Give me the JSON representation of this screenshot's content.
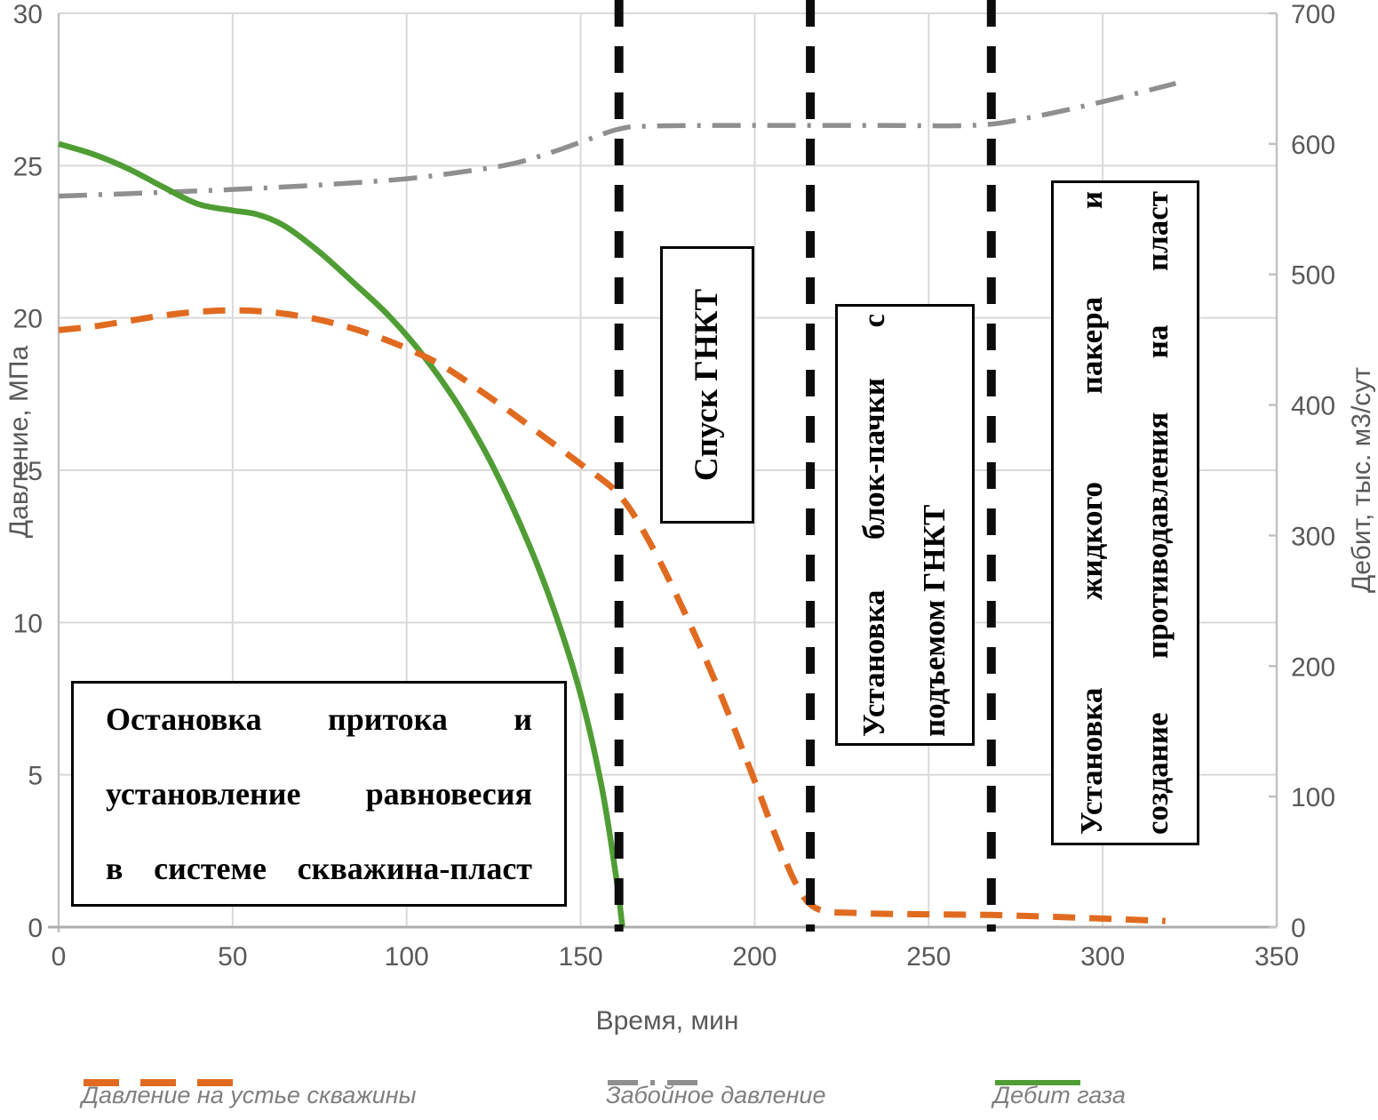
{
  "colors": {
    "grid": "#D9D9D9",
    "axis": "#C2C2C2",
    "bottom_axis": "#ADADAD",
    "event_line": "#0C0C0C",
    "tick_text": "#595959",
    "legend_text": "#7F7F7F"
  },
  "chart_data": {
    "type": "line",
    "title": "",
    "grid": "on",
    "legend_position": "bottom",
    "x_axis": {
      "title": "Время, мин",
      "range": [
        0,
        350
      ],
      "tick_labels": [
        "0",
        "50",
        "100",
        "150",
        "200",
        "250",
        "300",
        "350"
      ]
    },
    "y_left": {
      "title": "Давление, МПа",
      "range": [
        0,
        30
      ],
      "tick_labels": [
        "0",
        "5",
        "10",
        "15",
        "20",
        "25",
        "30"
      ]
    },
    "y_right": {
      "title": "Дебит, тыс. м3/сут",
      "range": [
        0,
        700
      ],
      "tick_labels": [
        "0",
        "100",
        "200",
        "300",
        "400",
        "500",
        "600",
        "700"
      ]
    },
    "event_lines": [
      161,
      216,
      268
    ],
    "series": [
      {
        "name": "Давление на устье скважины",
        "axis": "left",
        "style": "dashed",
        "color": "#E06B20",
        "points": [
          [
            0,
            19.6
          ],
          [
            10,
            19.72
          ],
          [
            20,
            19.9
          ],
          [
            30,
            20.08
          ],
          [
            40,
            20.2
          ],
          [
            50,
            20.25
          ],
          [
            60,
            20.2
          ],
          [
            70,
            20.05
          ],
          [
            80,
            19.8
          ],
          [
            90,
            19.45
          ],
          [
            100,
            19.0
          ],
          [
            110,
            18.45
          ],
          [
            120,
            17.7
          ],
          [
            130,
            16.9
          ],
          [
            140,
            16.05
          ],
          [
            150,
            15.2
          ],
          [
            161,
            14.2
          ],
          [
            170,
            12.6
          ],
          [
            180,
            10.3
          ],
          [
            190,
            7.7
          ],
          [
            200,
            4.8
          ],
          [
            206,
            3.0
          ],
          [
            212,
            1.4
          ],
          [
            218,
            0.6
          ],
          [
            230,
            0.46
          ],
          [
            250,
            0.42
          ],
          [
            268,
            0.4
          ],
          [
            285,
            0.34
          ],
          [
            300,
            0.28
          ],
          [
            318,
            0.2
          ]
        ]
      },
      {
        "name": "Забойное давление",
        "axis": "left",
        "style": "dashdot",
        "color": "#8F8F8F",
        "points": [
          [
            0,
            24.0
          ],
          [
            20,
            24.08
          ],
          [
            40,
            24.17
          ],
          [
            60,
            24.27
          ],
          [
            80,
            24.4
          ],
          [
            100,
            24.57
          ],
          [
            115,
            24.78
          ],
          [
            130,
            25.05
          ],
          [
            142,
            25.45
          ],
          [
            152,
            25.85
          ],
          [
            161,
            26.2
          ],
          [
            170,
            26.3
          ],
          [
            200,
            26.32
          ],
          [
            235,
            26.32
          ],
          [
            264,
            26.33
          ],
          [
            280,
            26.6
          ],
          [
            300,
            27.1
          ],
          [
            321,
            27.7
          ]
        ]
      },
      {
        "name": "Дебит газа",
        "axis": "right",
        "style": "solid",
        "color": "#4F9D34",
        "points": [
          [
            0,
            600
          ],
          [
            10,
            592
          ],
          [
            20,
            581
          ],
          [
            30,
            567
          ],
          [
            40,
            554
          ],
          [
            50,
            549
          ],
          [
            57,
            546
          ],
          [
            65,
            537
          ],
          [
            75,
            517
          ],
          [
            85,
            493
          ],
          [
            95,
            468
          ],
          [
            105,
            437
          ],
          [
            115,
            399
          ],
          [
            125,
            352
          ],
          [
            135,
            294
          ],
          [
            143,
            238
          ],
          [
            150,
            178
          ],
          [
            156,
            108
          ],
          [
            160,
            42
          ],
          [
            162,
            0
          ]
        ]
      }
    ]
  },
  "annotations": {
    "event_box_1": {
      "lines": [
        "Спуск ГНКТ"
      ]
    },
    "event_box_2": {
      "lines": [
        "Установка блок-пачки с",
        "подъемом ГНКТ"
      ]
    },
    "event_box_3": {
      "lines": [
        "Установка жидкого пакера и",
        "создание противодавления на пласт"
      ]
    },
    "note_box": {
      "lines": [
        "Остановка притока и",
        "установление равновесия",
        "в системе скважина-пласт"
      ]
    }
  }
}
